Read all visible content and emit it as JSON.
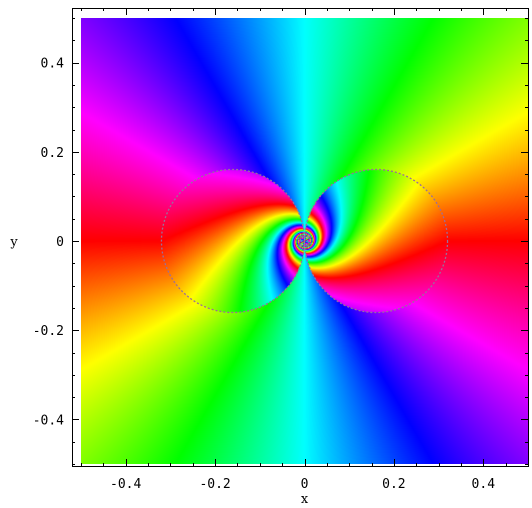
{
  "chart_data": {
    "type": "heatmap",
    "colormap": "hue",
    "xlabel": "x",
    "ylabel": "y",
    "xlim": [
      -0.5,
      0.5
    ],
    "ylim": [
      -0.5,
      0.5
    ],
    "grid": false,
    "x_ticks": [
      {
        "value": -0.4,
        "label": "-0.4"
      },
      {
        "value": -0.2,
        "label": "-0.2"
      },
      {
        "value": 0,
        "label": "0"
      },
      {
        "value": 0.2,
        "label": "0.2"
      },
      {
        "value": 0.4,
        "label": "0.4"
      }
    ],
    "y_ticks": [
      {
        "value": 0.4,
        "label": "0.4"
      },
      {
        "value": 0.2,
        "label": "0.2"
      },
      {
        "value": 0,
        "label": "0"
      },
      {
        "value": -0.2,
        "label": "-0.2"
      },
      {
        "value": -0.4,
        "label": "-0.4"
      }
    ],
    "minor_tick_step": 0.05,
    "annotations": [
      {
        "shape": "circle",
        "center": [
          -0.16,
          0
        ],
        "radius": 0.16
      },
      {
        "shape": "circle",
        "center": [
          0.16,
          0
        ],
        "radius": 0.16
      }
    ]
  }
}
